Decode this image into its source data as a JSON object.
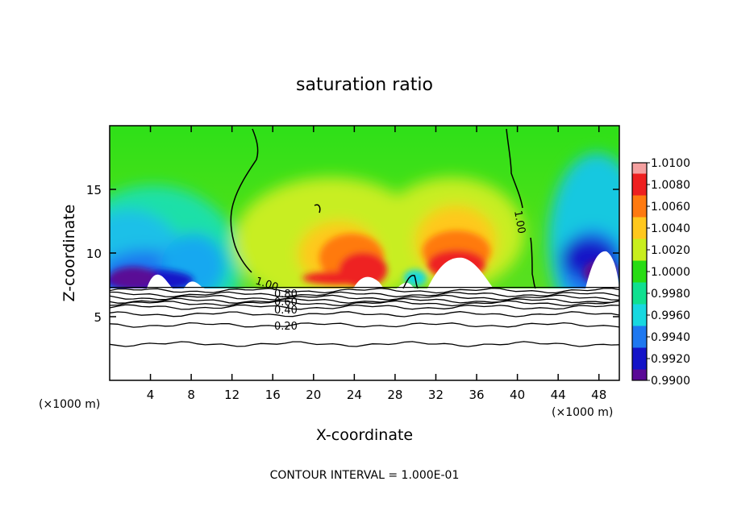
{
  "chart_data": {
    "type": "heatmap",
    "title": "saturation ratio",
    "xlabel": "X-coordinate",
    "ylabel": "Z-coordinate",
    "x_unit_label": "(×1000 m)",
    "x_unit_label_right": "(×1000 m)",
    "xlim": [
      0,
      50
    ],
    "ylim": [
      0,
      20
    ],
    "x_ticks": [
      4,
      8,
      12,
      16,
      20,
      24,
      28,
      32,
      36,
      40,
      44,
      48
    ],
    "y_ticks": [
      5,
      10,
      15
    ],
    "footer": "CONTOUR INTERVAL = 1.000E-01",
    "colorbar": {
      "levels": [
        "1.0100",
        "1.0080",
        "1.0060",
        "1.0040",
        "1.0020",
        "1.0000",
        "0.9980",
        "0.9960",
        "0.9940",
        "0.9920",
        "0.9900"
      ],
      "colors": [
        "#f4a0a0",
        "#ee2020",
        "#ff7a10",
        "#ffc81e",
        "#c8ee1e",
        "#28dc14",
        "#10e090",
        "#18d8e0",
        "#1e78f0",
        "#1414c8",
        "#5a0a96"
      ]
    },
    "contour_labels": [
      {
        "text": "1.00",
        "x": 15.2,
        "y": 7.9
      },
      {
        "text": "1.00",
        "x": 40.6,
        "y": 12.4
      },
      {
        "text": "0.80",
        "x": 17.4,
        "y": 6.7
      },
      {
        "text": "0.60",
        "x": 17.4,
        "y": 6.3
      },
      {
        "text": "0.40",
        "x": 17.4,
        "y": 5.7
      },
      {
        "text": "0.20",
        "x": 17.4,
        "y": 4.1
      }
    ],
    "cloud_base_height": 7.3,
    "boundary_layer_contours": [
      7.05,
      6.75,
      6.5,
      6.25,
      6.05,
      5.75,
      5.2,
      4.35,
      2.85
    ]
  }
}
